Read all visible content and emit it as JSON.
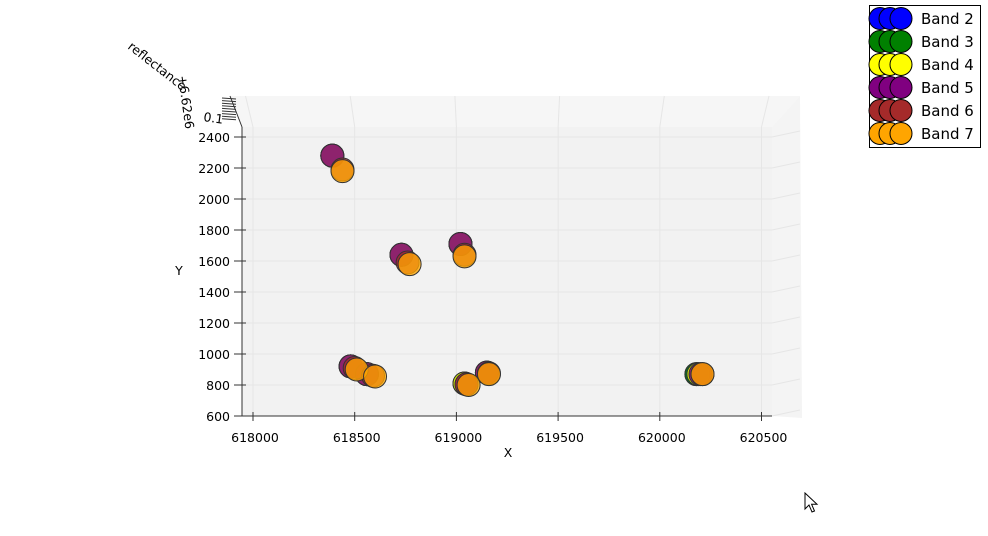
{
  "chart_data": {
    "type": "scatter",
    "view": "3d-top-down",
    "xlabel": "X",
    "ylabel": "Y",
    "zlabel": "reflectance",
    "xlim": [
      617950,
      620700
    ],
    "ylim": [
      600,
      2450
    ],
    "x_ticks": [
      "618000",
      "618500",
      "619000",
      "619500",
      "620000",
      "620500"
    ],
    "y_ticks": [
      "600",
      "800",
      "1000",
      "1200",
      "1400",
      "1600",
      "1800",
      "2000",
      "2200",
      "2400"
    ],
    "z_ticks_overlapped": [
      "0.1",
      "+6.62e6"
    ],
    "grid": true,
    "legend_position": "top-right",
    "series": [
      {
        "name": "Band 2",
        "color": "#0000ff",
        "points": [
          [
            618390,
            2280
          ],
          [
            618730,
            1640
          ],
          [
            619020,
            1710
          ],
          [
            618480,
            920
          ],
          [
            618560,
            870
          ],
          [
            619040,
            810
          ],
          [
            619150,
            880
          ],
          [
            620180,
            870
          ]
        ]
      },
      {
        "name": "Band 3",
        "color": "#008000",
        "points": [
          [
            618390,
            2280
          ],
          [
            618730,
            1640
          ],
          [
            619020,
            1710
          ],
          [
            618480,
            920
          ],
          [
            618560,
            870
          ],
          [
            619040,
            810
          ],
          [
            619150,
            880
          ],
          [
            620180,
            870
          ]
        ]
      },
      {
        "name": "Band 4",
        "color": "#ffff00",
        "points": [
          [
            618390,
            2280
          ],
          [
            618730,
            1640
          ],
          [
            619020,
            1710
          ],
          [
            618480,
            920
          ],
          [
            618560,
            870
          ],
          [
            619040,
            810
          ],
          [
            619150,
            880
          ],
          [
            620190,
            870
          ]
        ]
      },
      {
        "name": "Band 5",
        "color": "#800080",
        "points": [
          [
            618390,
            2280
          ],
          [
            618730,
            1640
          ],
          [
            619020,
            1710
          ],
          [
            618480,
            920
          ],
          [
            618560,
            870
          ],
          [
            619050,
            805
          ],
          [
            619150,
            880
          ],
          [
            620200,
            870
          ]
        ]
      },
      {
        "name": "Band 6",
        "color": "#a52a2a",
        "points": [
          [
            618440,
            2190
          ],
          [
            618760,
            1590
          ],
          [
            619040,
            1640
          ],
          [
            618500,
            910
          ],
          [
            618590,
            860
          ],
          [
            619050,
            805
          ],
          [
            619160,
            875
          ],
          [
            620210,
            870
          ]
        ]
      },
      {
        "name": "Band 7",
        "color": "#ffa500",
        "points": [
          [
            618440,
            2180
          ],
          [
            618770,
            1580
          ],
          [
            619040,
            1630
          ],
          [
            618510,
            900
          ],
          [
            618600,
            855
          ],
          [
            619060,
            800
          ],
          [
            619160,
            870
          ],
          [
            620210,
            870
          ]
        ]
      }
    ]
  }
}
